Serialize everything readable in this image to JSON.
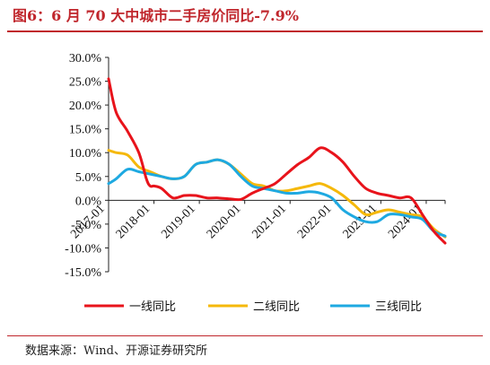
{
  "figure": {
    "title": "图6：6 月 70 大中城市二手房价同比-7.9%",
    "source": "数据来源：Wind、开源证券研究所"
  },
  "colors": {
    "tier1": "#e8131b",
    "tier2": "#f5b80a",
    "tier3": "#1ea9e1",
    "title": "#c0262c"
  },
  "chart_data": {
    "type": "line",
    "ylim": [
      -15,
      30
    ],
    "ytick_values": [
      -15,
      -10,
      -5,
      0,
      5,
      10,
      15,
      20,
      25,
      30
    ],
    "ytick_labels": [
      "-15.0%",
      "-10.0%",
      "-5.0%",
      "0.0%",
      "5.0%",
      "10.0%",
      "15.0%",
      "20.0%",
      "25.0%",
      "30.0%"
    ],
    "xlim": [
      "2017-01",
      "2024-06"
    ],
    "xtick_values": [
      "2017-01",
      "2018-01",
      "2019-01",
      "2020-01",
      "2021-01",
      "2022-01",
      "2023-01",
      "2024-01"
    ],
    "xtick_labels": [
      "2017-01",
      "2018-01",
      "2019-01",
      "2020-01",
      "2021-01",
      "2022-01",
      "2023-01",
      "2024-01"
    ],
    "legend": "bottom",
    "series": [
      {
        "name": "一线同比",
        "x": [
          "2017-01",
          "2017-03",
          "2017-06",
          "2017-09",
          "2017-11",
          "2017-12",
          "2018-01",
          "2018-03",
          "2018-06",
          "2018-09",
          "2018-12",
          "2019-03",
          "2019-06",
          "2019-09",
          "2019-12",
          "2020-03",
          "2020-06",
          "2020-09",
          "2020-12",
          "2021-03",
          "2021-06",
          "2021-09",
          "2021-12",
          "2022-03",
          "2022-06",
          "2022-09",
          "2022-12",
          "2023-03",
          "2023-06",
          "2023-09",
          "2023-12",
          "2024-03",
          "2024-06"
        ],
        "values": [
          25.5,
          18.5,
          14.5,
          10.0,
          4.5,
          3.0,
          3.0,
          2.5,
          0.5,
          1.0,
          1.0,
          0.5,
          0.5,
          0.3,
          0.2,
          1.5,
          2.5,
          3.5,
          5.5,
          7.5,
          9.0,
          11.0,
          10.0,
          8.0,
          5.0,
          2.5,
          1.5,
          1.0,
          0.5,
          0.5,
          -3.0,
          -6.5,
          -9.0
        ]
      },
      {
        "name": "二线同比",
        "x": [
          "2017-01",
          "2017-03",
          "2017-06",
          "2017-09",
          "2017-12",
          "2018-03",
          "2018-06",
          "2018-09",
          "2018-12",
          "2019-03",
          "2019-06",
          "2019-09",
          "2019-12",
          "2020-03",
          "2020-06",
          "2020-09",
          "2020-12",
          "2021-03",
          "2021-06",
          "2021-09",
          "2021-12",
          "2022-03",
          "2022-06",
          "2022-09",
          "2022-12",
          "2023-03",
          "2023-06",
          "2023-09",
          "2023-12",
          "2024-03",
          "2024-06"
        ],
        "values": [
          10.5,
          10.0,
          9.5,
          7.0,
          6.0,
          5.0,
          4.5,
          5.0,
          7.5,
          8.0,
          8.5,
          7.5,
          5.5,
          3.5,
          3.0,
          2.0,
          2.0,
          2.5,
          3.0,
          3.5,
          2.5,
          1.0,
          -1.0,
          -3.0,
          -2.5,
          -2.0,
          -2.5,
          -3.0,
          -3.5,
          -6.0,
          -7.7
        ]
      },
      {
        "name": "三线同比",
        "x": [
          "2017-01",
          "2017-03",
          "2017-06",
          "2017-09",
          "2017-12",
          "2018-03",
          "2018-06",
          "2018-09",
          "2018-12",
          "2019-03",
          "2019-06",
          "2019-09",
          "2019-12",
          "2020-03",
          "2020-06",
          "2020-09",
          "2020-12",
          "2021-03",
          "2021-06",
          "2021-09",
          "2021-12",
          "2022-03",
          "2022-06",
          "2022-09",
          "2022-12",
          "2023-03",
          "2023-06",
          "2023-09",
          "2023-12",
          "2024-03",
          "2024-06"
        ],
        "values": [
          3.5,
          4.5,
          6.5,
          6.0,
          5.5,
          5.0,
          4.5,
          5.0,
          7.5,
          8.0,
          8.5,
          7.5,
          5.0,
          3.0,
          2.5,
          2.0,
          1.5,
          1.5,
          1.8,
          1.5,
          0.5,
          -2.0,
          -3.5,
          -4.5,
          -4.5,
          -3.0,
          -3.0,
          -3.5,
          -4.0,
          -6.5,
          -7.5
        ]
      }
    ]
  }
}
